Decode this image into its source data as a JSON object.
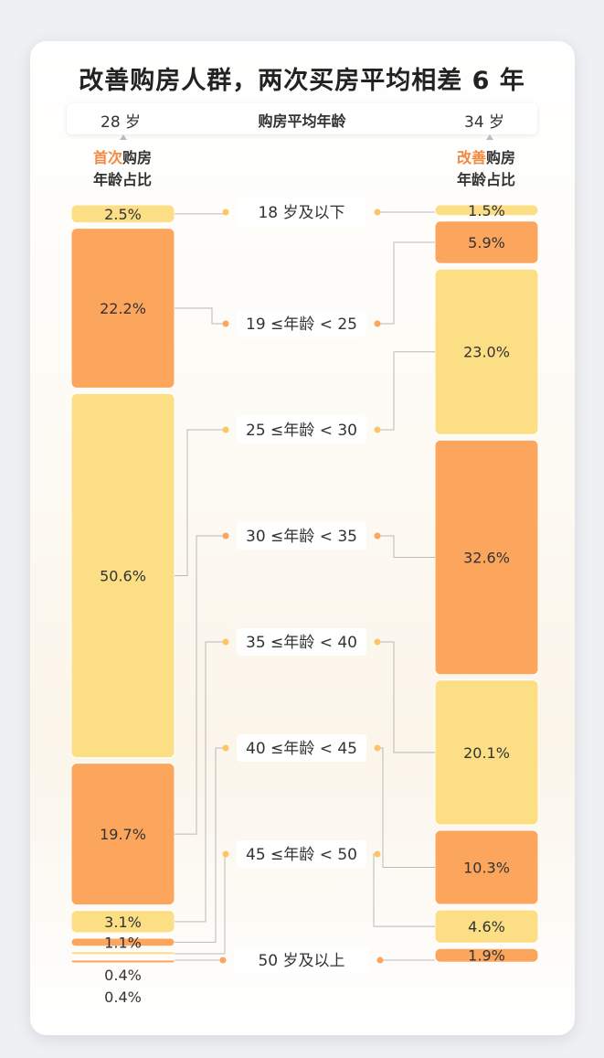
{
  "title": "改善购房人群，两次买房平均相差 6 年",
  "avg_bar": {
    "left_value": "28 岁",
    "center_label": "购房平均年龄",
    "right_value": "34 岁"
  },
  "left_header": {
    "accent": "首次",
    "rest": "购房",
    "line2": "年龄占比"
  },
  "right_header": {
    "accent": "改善",
    "rest": "购房",
    "line2": "年龄占比"
  },
  "colors": {
    "orange": "#fca55c",
    "yellow": "#fcde84",
    "accent": "#f4883e",
    "dot": "#fcc567"
  },
  "chart_data": {
    "type": "bar",
    "categories": [
      "18 岁及以下",
      "19 ≤年龄 < 25",
      "25 ≤年龄 < 30",
      "30 ≤年龄 < 35",
      "35 ≤年龄 < 40",
      "40 ≤年龄 < 45",
      "45 ≤年龄 < 50",
      "50 岁及以上"
    ],
    "series": [
      {
        "name": "首次购房年龄占比",
        "values": [
          2.5,
          22.2,
          50.6,
          19.7,
          3.1,
          1.1,
          0.4,
          0.4
        ],
        "labels": [
          "2.5%",
          "22.2%",
          "50.6%",
          "19.7%",
          "3.1%",
          "1.1%",
          "0.4%",
          "0.4%"
        ]
      },
      {
        "name": "改善购房年龄占比",
        "values": [
          1.5,
          5.9,
          23.0,
          32.6,
          20.1,
          10.3,
          4.6,
          1.9
        ],
        "labels": [
          "1.5%",
          "5.9%",
          "23.0%",
          "32.6%",
          "20.1%",
          "10.3%",
          "4.6%",
          "1.9%"
        ]
      }
    ]
  }
}
